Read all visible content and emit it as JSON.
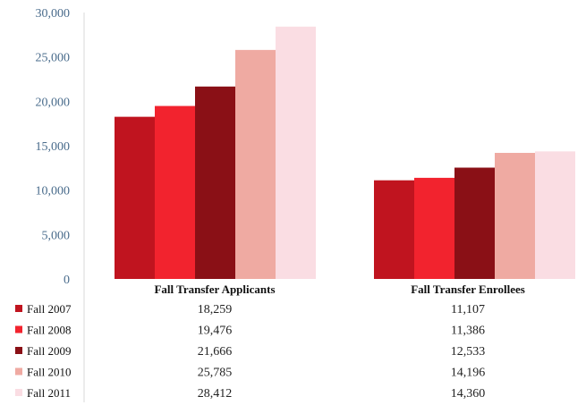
{
  "chart_data": {
    "type": "bar",
    "categories": [
      "Fall Transfer Applicants",
      "Fall Transfer Enrollees"
    ],
    "series": [
      {
        "name": "Fall 2007",
        "color": "#c0141f",
        "values": [
          18259,
          11107
        ],
        "labels": [
          "18,259",
          "11,107"
        ]
      },
      {
        "name": "Fall 2008",
        "color": "#f2232e",
        "values": [
          19476,
          11386
        ],
        "labels": [
          "19,476",
          "11,386"
        ]
      },
      {
        "name": "Fall 2009",
        "color": "#8a1016",
        "values": [
          21666,
          12533
        ],
        "labels": [
          "21,666",
          "12,533"
        ]
      },
      {
        "name": "Fall 2010",
        "color": "#efaaa2",
        "values": [
          25785,
          14196
        ],
        "labels": [
          "25,785",
          "14,196"
        ]
      },
      {
        "name": "Fall 2011",
        "color": "#fadde3",
        "values": [
          28412,
          14360
        ],
        "labels": [
          "28,412",
          "14,360"
        ]
      }
    ],
    "yticks": [
      "0",
      "5,000",
      "10,000",
      "15,000",
      "20,000",
      "25,000",
      "30,000"
    ],
    "ylim": [
      0,
      30000
    ],
    "grid": false,
    "legend": "data-table-left"
  }
}
